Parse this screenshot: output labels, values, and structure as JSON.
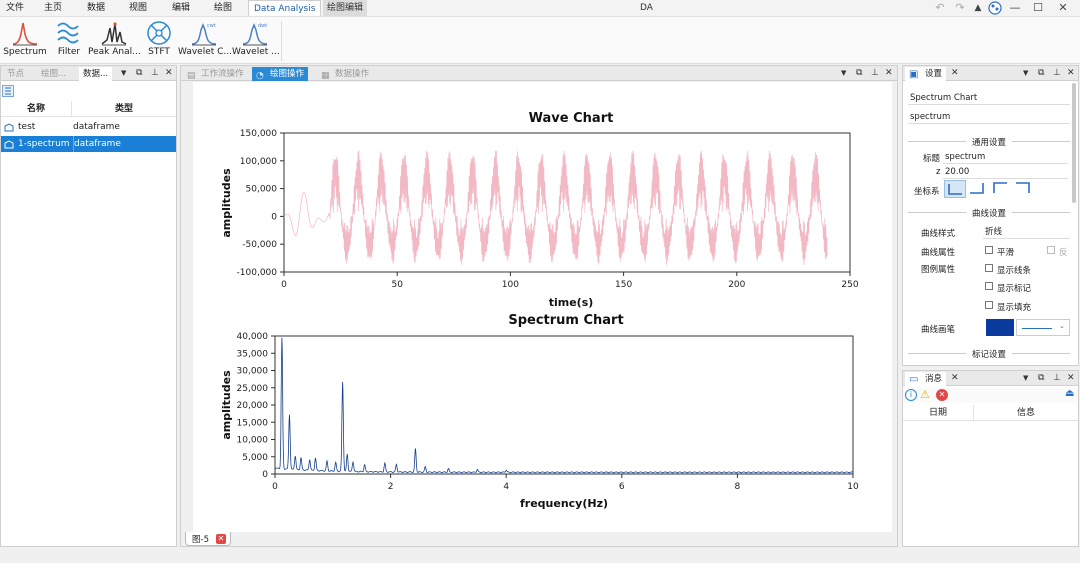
{
  "menu": {
    "file": "文件",
    "home": "主页",
    "data": "数据",
    "view": "视图",
    "edit": "编辑",
    "plot": "绘图",
    "analysis": "Data Analysis",
    "plot_edit": "绘图编辑"
  },
  "app_title": "DA",
  "ribbon": {
    "spectrum": "Spectrum",
    "filter": "Filter",
    "peak": "Peak Anal...",
    "stft": "STFT",
    "wavelet_c": "Wavelet C...",
    "wavelet_d": "Wavelet ...",
    "wavelet_c_badge": "cwt",
    "wavelet_d_badge": "dwt"
  },
  "left_panel": {
    "tabs": [
      "节点",
      "绘图...",
      "数据..."
    ],
    "columns": [
      "名称",
      "类型"
    ],
    "rows": [
      {
        "name": "test",
        "type": "dataframe"
      },
      {
        "name": "1-spectrum",
        "type": "dataframe"
      }
    ]
  },
  "center_panel": {
    "tabs": [
      "工作流操作",
      "绘图操作",
      "数据操作"
    ],
    "bottom_tab": "图-5"
  },
  "wave_chart": {
    "title": "Wave Chart",
    "xlabel": "time(s)",
    "ylabel": "amplitudes",
    "xticks": [
      "0",
      "50",
      "100",
      "150",
      "200",
      "250"
    ],
    "yticks": [
      "150,000",
      "100,000",
      "50,000",
      "0",
      "-50,000",
      "-100,000"
    ]
  },
  "spectrum_chart": {
    "title": "Spectrum Chart",
    "xlabel": "frequency(Hz)",
    "ylabel": "amplitudes",
    "xticks": [
      "0",
      "2",
      "4",
      "6",
      "8",
      "10"
    ],
    "yticks": [
      "40,000",
      "35,000",
      "30,000",
      "25,000",
      "20,000",
      "15,000",
      "10,000",
      "5,000",
      "0"
    ]
  },
  "chart_data": [
    {
      "type": "line",
      "title": "Wave Chart",
      "xlabel": "time(s)",
      "ylabel": "amplitudes",
      "xlim": [
        0,
        250
      ],
      "ylim": [
        -100000,
        150000
      ],
      "color": "#f2b8c3",
      "description_points": {
        "x": [
          0,
          5,
          10,
          12,
          15,
          20,
          25,
          50,
          100,
          150,
          200,
          240
        ],
        "y_envelope_max": [
          0,
          30000,
          15000,
          5000,
          35000,
          30000,
          115000,
          115000,
          115000,
          115000,
          115000,
          115000
        ],
        "y_envelope_min": [
          0,
          -10000,
          -45000,
          -20000,
          -10000,
          -70000,
          -80000,
          -80000,
          -80000,
          -80000,
          -80000,
          -80000
        ]
      }
    },
    {
      "type": "line",
      "title": "Spectrum Chart",
      "xlabel": "frequency(Hz)",
      "ylabel": "amplitudes",
      "xlim": [
        0,
        10
      ],
      "ylim": [
        0,
        40000
      ],
      "color": "#163f8c",
      "peaks": [
        {
          "x": 0.12,
          "y": 38500
        },
        {
          "x": 0.25,
          "y": 16000
        },
        {
          "x": 0.35,
          "y": 4000
        },
        {
          "x": 0.45,
          "y": 3500
        },
        {
          "x": 0.6,
          "y": 3200
        },
        {
          "x": 0.7,
          "y": 3600
        },
        {
          "x": 0.9,
          "y": 2800
        },
        {
          "x": 1.05,
          "y": 2500
        },
        {
          "x": 1.17,
          "y": 26000
        },
        {
          "x": 1.25,
          "y": 5000
        },
        {
          "x": 1.35,
          "y": 2800
        },
        {
          "x": 1.55,
          "y": 2000
        },
        {
          "x": 1.9,
          "y": 2500
        },
        {
          "x": 2.1,
          "y": 2200
        },
        {
          "x": 2.43,
          "y": 6800
        },
        {
          "x": 2.6,
          "y": 1500
        },
        {
          "x": 3.0,
          "y": 1000
        },
        {
          "x": 3.5,
          "y": 800
        },
        {
          "x": 4.0,
          "y": 600
        }
      ]
    }
  ],
  "props": {
    "tab": "设置",
    "chart_name": "Spectrum Chart",
    "series_name": "spectrum",
    "general_section": "通用设置",
    "title_label": "标题",
    "title_value": "spectrum",
    "z_label": "z",
    "z_value": "20.00",
    "axes_label": "坐标系",
    "curve_section": "曲线设置",
    "curve_style_label": "曲线样式",
    "curve_style_value": "折线",
    "curve_attr_label": "曲线属性",
    "smooth_label": "平滑",
    "reverse_label": "反",
    "legend_attr_label": "图例属性",
    "show_line_label": "显示线条",
    "show_marker_label": "显示标记",
    "show_fill_label": "显示填充",
    "pen_label": "曲线画笔",
    "pen_color": "#0b3a9e",
    "marker_section": "标记设置"
  },
  "messages": {
    "tab": "消息",
    "col_date": "日期",
    "col_info": "信息"
  }
}
